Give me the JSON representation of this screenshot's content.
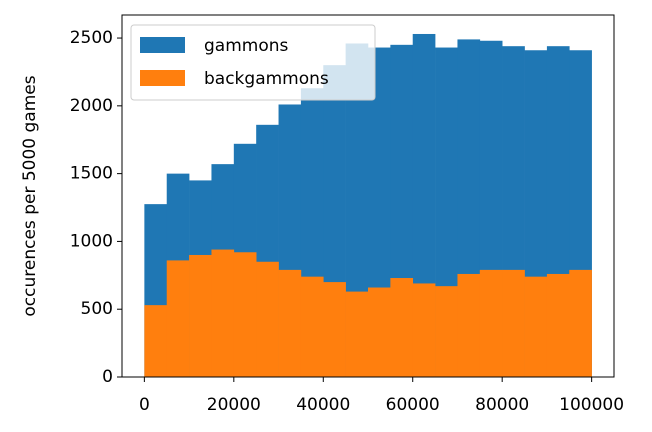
{
  "chart_data": {
    "type": "histogram",
    "ylabel": "occurences per 5000 games",
    "bins": [
      0,
      5000,
      10000,
      15000,
      20000,
      25000,
      30000,
      35000,
      40000,
      45000,
      50000,
      55000,
      60000,
      65000,
      70000,
      75000,
      80000,
      85000,
      90000,
      95000,
      100000
    ],
    "series": [
      {
        "name": "gammons",
        "color": "#1f77b4",
        "values": [
          1275,
          1500,
          1450,
          1570,
          1720,
          1860,
          2010,
          2130,
          2300,
          2460,
          2430,
          2450,
          2530,
          2430,
          2490,
          2480,
          2440,
          2410,
          2440,
          2410
        ]
      },
      {
        "name": "backgammons",
        "color": "#ff7f0e",
        "values": [
          530,
          860,
          900,
          940,
          920,
          850,
          790,
          740,
          700,
          630,
          660,
          730,
          690,
          670,
          760,
          790,
          790,
          740,
          760,
          790
        ]
      }
    ],
    "xlim": [
      -5000,
      105000
    ],
    "ylim": [
      0,
      2670
    ],
    "xticks": [
      0,
      20000,
      40000,
      60000,
      80000,
      100000
    ],
    "yticks": [
      0,
      500,
      1000,
      1500,
      2000,
      2500
    ],
    "legend": "upper left"
  }
}
